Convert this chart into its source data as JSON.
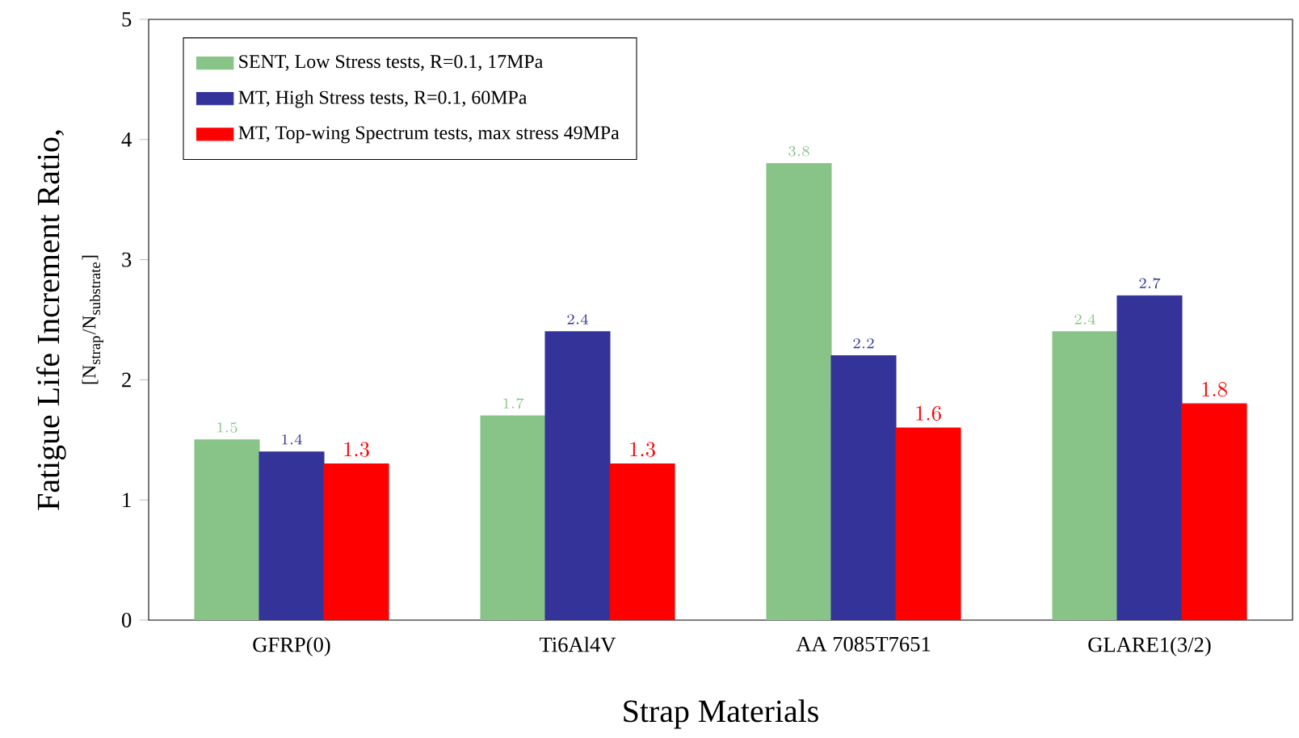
{
  "chart_data": {
    "type": "bar",
    "xlabel": "Strap Materials",
    "ylabel": "\\begin{array}{c}\\mbox{Fatigue Life Increment Ratio,}\\\\ \\mbox{\\small[N}_{\\mbox{\\scriptsize strap}}\\mbox{\\small /N}_{\\mbox{\\scriptsize substrate}}\\mbox{\\small ]}\\end{array}",
    "categories": [
      "GFRP(0)",
      "Ti6Al4V",
      "AA 7085T7651",
      "GLARE1(3/2)"
    ],
    "series": [
      {
        "name": "SENT, Low Stress tests, R=0.1, 17MPa",
        "color": "#88c488",
        "values": [
          1.5,
          1.7,
          3.8,
          2.4
        ]
      },
      {
        "name": "MT, High Stress tests, R=0.1, 60MPa",
        "color": "#333399",
        "values": [
          1.4,
          2.4,
          2.2,
          2.7
        ]
      },
      {
        "name": "MT, Top-wing Spectrum tests, max stress 49MPa",
        "color": "#ff0000",
        "values": [
          1.3,
          1.3,
          1.6,
          1.8
        ]
      }
    ],
    "ylim": [
      0,
      5
    ],
    "yticks": [
      0,
      1,
      2,
      3,
      4,
      5
    ],
    "legend": "top left",
    "data_labels": true
  }
}
